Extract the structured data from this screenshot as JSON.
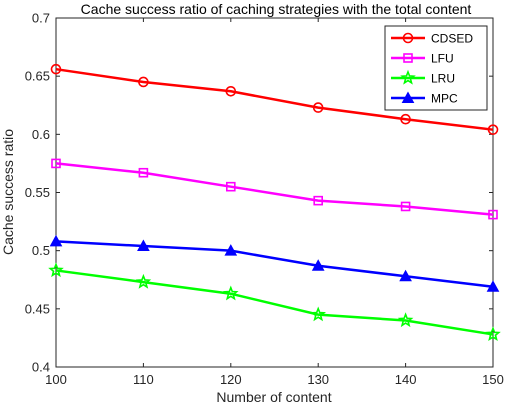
{
  "chart_data": {
    "type": "line",
    "title": "Cache success ratio of caching strategies with the total content",
    "xlabel": "Number of content",
    "ylabel": "Cache success ratio",
    "x": [
      100,
      110,
      120,
      130,
      140,
      150
    ],
    "xlim": [
      100,
      150
    ],
    "ylim": [
      0.4,
      0.7
    ],
    "xticks": [
      "100",
      "110",
      "120",
      "130",
      "140",
      "150"
    ],
    "yticks": [
      "0.4",
      "0.45",
      "0.5",
      "0.55",
      "0.6",
      "0.65",
      "0.7"
    ],
    "grid": false,
    "legend_position": "top-right",
    "series": [
      {
        "name": "CDSED",
        "values": [
          0.656,
          0.645,
          0.637,
          0.623,
          0.613,
          0.604
        ],
        "color": "#ff0000",
        "marker": "circle"
      },
      {
        "name": "LFU",
        "values": [
          0.575,
          0.567,
          0.555,
          0.543,
          0.538,
          0.531
        ],
        "color": "#ff00ff",
        "marker": "square"
      },
      {
        "name": "LRU",
        "values": [
          0.483,
          0.473,
          0.463,
          0.445,
          0.44,
          0.428
        ],
        "color": "#00ff00",
        "marker": "star"
      },
      {
        "name": "MPC",
        "values": [
          0.508,
          0.504,
          0.5,
          0.487,
          0.478,
          0.469
        ],
        "color": "#0000ff",
        "marker": "triangle"
      }
    ]
  }
}
